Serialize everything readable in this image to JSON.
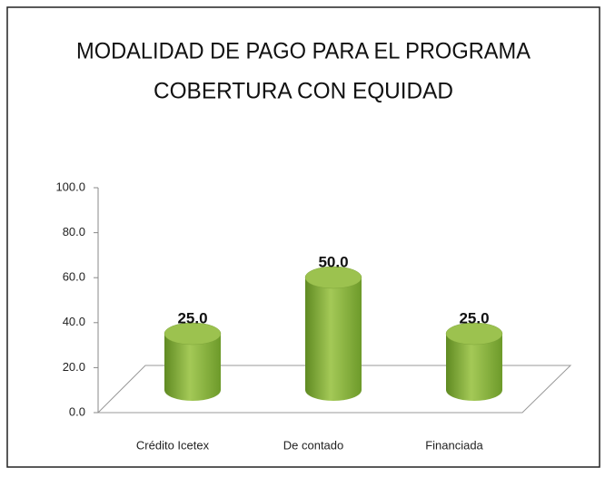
{
  "chart_data": {
    "type": "bar",
    "title": [
      "MODALIDAD DE PAGO PARA EL PROGRAMA",
      "COBERTURA CON EQUIDAD"
    ],
    "categories": [
      "Crédito Icetex",
      "De contado",
      "Financiada"
    ],
    "values": [
      25,
      50,
      25
    ],
    "value_labels": [
      "25.0",
      "50.0",
      "25.0"
    ],
    "color": "#8db33f",
    "ylim": [
      0,
      100
    ],
    "yticks": [
      {
        "value": 0,
        "label": "0.0"
      },
      {
        "value": 20,
        "label": "20.0"
      },
      {
        "value": 40,
        "label": "40.0"
      },
      {
        "value": 60,
        "label": "60.0"
      },
      {
        "value": 80,
        "label": "80.0"
      },
      {
        "value": 100,
        "label": "100.0"
      }
    ]
  }
}
